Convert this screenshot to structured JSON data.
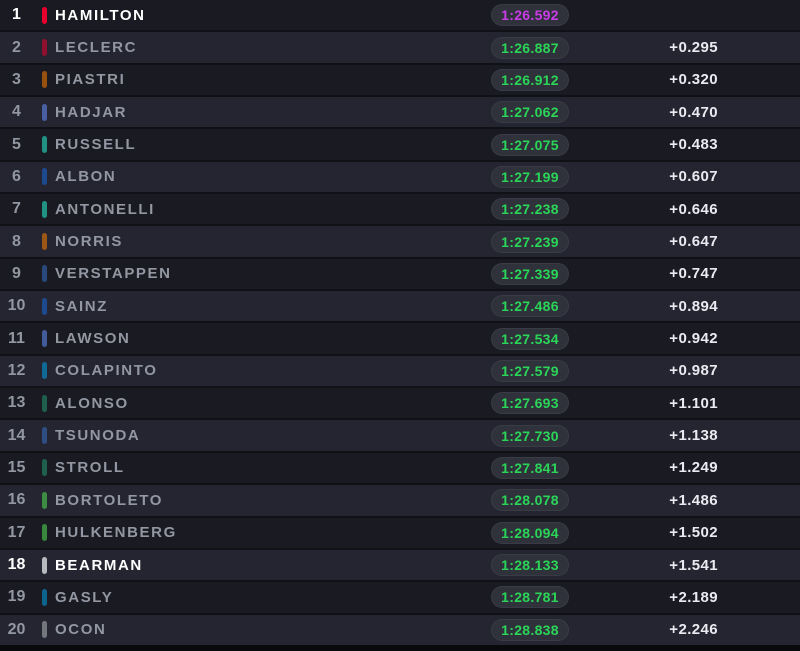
{
  "board": {
    "palette": {
      "page_bg": "#08090d",
      "row_odd_bg": "#191a22",
      "row_even_bg": "#242531",
      "separator": "#101117",
      "text_dim": "#9297a2",
      "text_highlight": "#ffffff",
      "gap_text": "#e9ebf0",
      "pill_bg": "#2f323b"
    },
    "time_colors": {
      "fastest_overall": "#c93ce6",
      "personal_best": "#2bd558"
    },
    "team_colors": {
      "ferrari": "#E8002D",
      "mclaren": "#FF8000",
      "racing_bulls": "#6692FF",
      "mercedes": "#27F4D2",
      "williams": "#1868DB",
      "red_bull": "#3671C6",
      "alpine": "#00A1E8",
      "aston_martin": "#229971",
      "sauber": "#52E252",
      "haas": "#B6BABD"
    },
    "rows": [
      {
        "pos": "1",
        "driver": "HAMILTON",
        "team": "ferrari",
        "time": "1:26.592",
        "gap": "",
        "fastest": true,
        "highlight": true
      },
      {
        "pos": "2",
        "driver": "LECLERC",
        "team": "ferrari",
        "time": "1:26.887",
        "gap": "+0.295",
        "fastest": false,
        "highlight": false
      },
      {
        "pos": "3",
        "driver": "PIASTRI",
        "team": "mclaren",
        "time": "1:26.912",
        "gap": "+0.320",
        "fastest": false,
        "highlight": false
      },
      {
        "pos": "4",
        "driver": "HADJAR",
        "team": "racing_bulls",
        "time": "1:27.062",
        "gap": "+0.470",
        "fastest": false,
        "highlight": false
      },
      {
        "pos": "5",
        "driver": "RUSSELL",
        "team": "mercedes",
        "time": "1:27.075",
        "gap": "+0.483",
        "fastest": false,
        "highlight": false
      },
      {
        "pos": "6",
        "driver": "ALBON",
        "team": "williams",
        "time": "1:27.199",
        "gap": "+0.607",
        "fastest": false,
        "highlight": false
      },
      {
        "pos": "7",
        "driver": "ANTONELLI",
        "team": "mercedes",
        "time": "1:27.238",
        "gap": "+0.646",
        "fastest": false,
        "highlight": false
      },
      {
        "pos": "8",
        "driver": "NORRIS",
        "team": "mclaren",
        "time": "1:27.239",
        "gap": "+0.647",
        "fastest": false,
        "highlight": false
      },
      {
        "pos": "9",
        "driver": "VERSTAPPEN",
        "team": "red_bull",
        "time": "1:27.339",
        "gap": "+0.747",
        "fastest": false,
        "highlight": false
      },
      {
        "pos": "10",
        "driver": "SAINZ",
        "team": "williams",
        "time": "1:27.486",
        "gap": "+0.894",
        "fastest": false,
        "highlight": false
      },
      {
        "pos": "11",
        "driver": "LAWSON",
        "team": "racing_bulls",
        "time": "1:27.534",
        "gap": "+0.942",
        "fastest": false,
        "highlight": false
      },
      {
        "pos": "12",
        "driver": "COLAPINTO",
        "team": "alpine",
        "time": "1:27.579",
        "gap": "+0.987",
        "fastest": false,
        "highlight": false
      },
      {
        "pos": "13",
        "driver": "ALONSO",
        "team": "aston_martin",
        "time": "1:27.693",
        "gap": "+1.101",
        "fastest": false,
        "highlight": false
      },
      {
        "pos": "14",
        "driver": "TSUNODA",
        "team": "red_bull",
        "time": "1:27.730",
        "gap": "+1.138",
        "fastest": false,
        "highlight": false
      },
      {
        "pos": "15",
        "driver": "STROLL",
        "team": "aston_martin",
        "time": "1:27.841",
        "gap": "+1.249",
        "fastest": false,
        "highlight": false
      },
      {
        "pos": "16",
        "driver": "BORTOLETO",
        "team": "sauber",
        "time": "1:28.078",
        "gap": "+1.486",
        "fastest": false,
        "highlight": false
      },
      {
        "pos": "17",
        "driver": "HULKENBERG",
        "team": "sauber",
        "time": "1:28.094",
        "gap": "+1.502",
        "fastest": false,
        "highlight": false
      },
      {
        "pos": "18",
        "driver": "BEARMAN",
        "team": "haas",
        "time": "1:28.133",
        "gap": "+1.541",
        "fastest": false,
        "highlight": true
      },
      {
        "pos": "19",
        "driver": "GASLY",
        "team": "alpine",
        "time": "1:28.781",
        "gap": "+2.189",
        "fastest": false,
        "highlight": false
      },
      {
        "pos": "20",
        "driver": "OCON",
        "team": "haas",
        "time": "1:28.838",
        "gap": "+2.246",
        "fastest": false,
        "highlight": false
      }
    ]
  }
}
